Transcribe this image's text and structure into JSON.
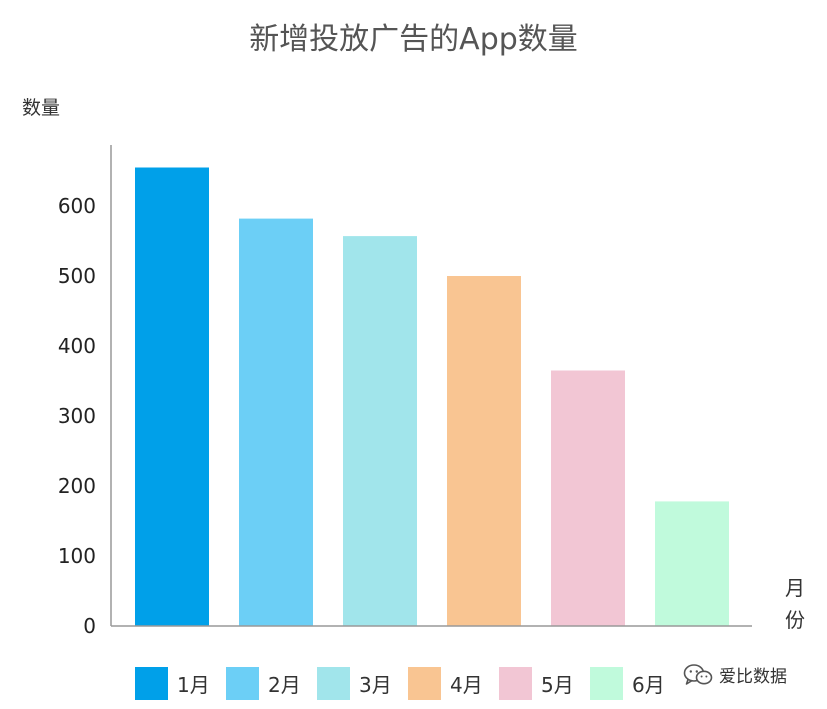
{
  "chart_data": {
    "type": "bar",
    "title": "新增投放广告的App数量",
    "ylabel": "数量",
    "xlabel": "月份",
    "categories": [
      "1月",
      "2月",
      "3月",
      "4月",
      "5月",
      "6月"
    ],
    "values": [
      655,
      582,
      557,
      500,
      365,
      178
    ],
    "colors": [
      "#00a0e9",
      "#6ccff6",
      "#a1e5eb",
      "#f9c592",
      "#f2c6d4",
      "#c0fadc"
    ],
    "ylim": [
      0,
      700
    ],
    "yticks": [
      0,
      100,
      200,
      300,
      400,
      500,
      600
    ],
    "grid": false,
    "legend": "bottom"
  },
  "watermark": {
    "icon": "wechat-icon",
    "text": "爱比数据"
  }
}
